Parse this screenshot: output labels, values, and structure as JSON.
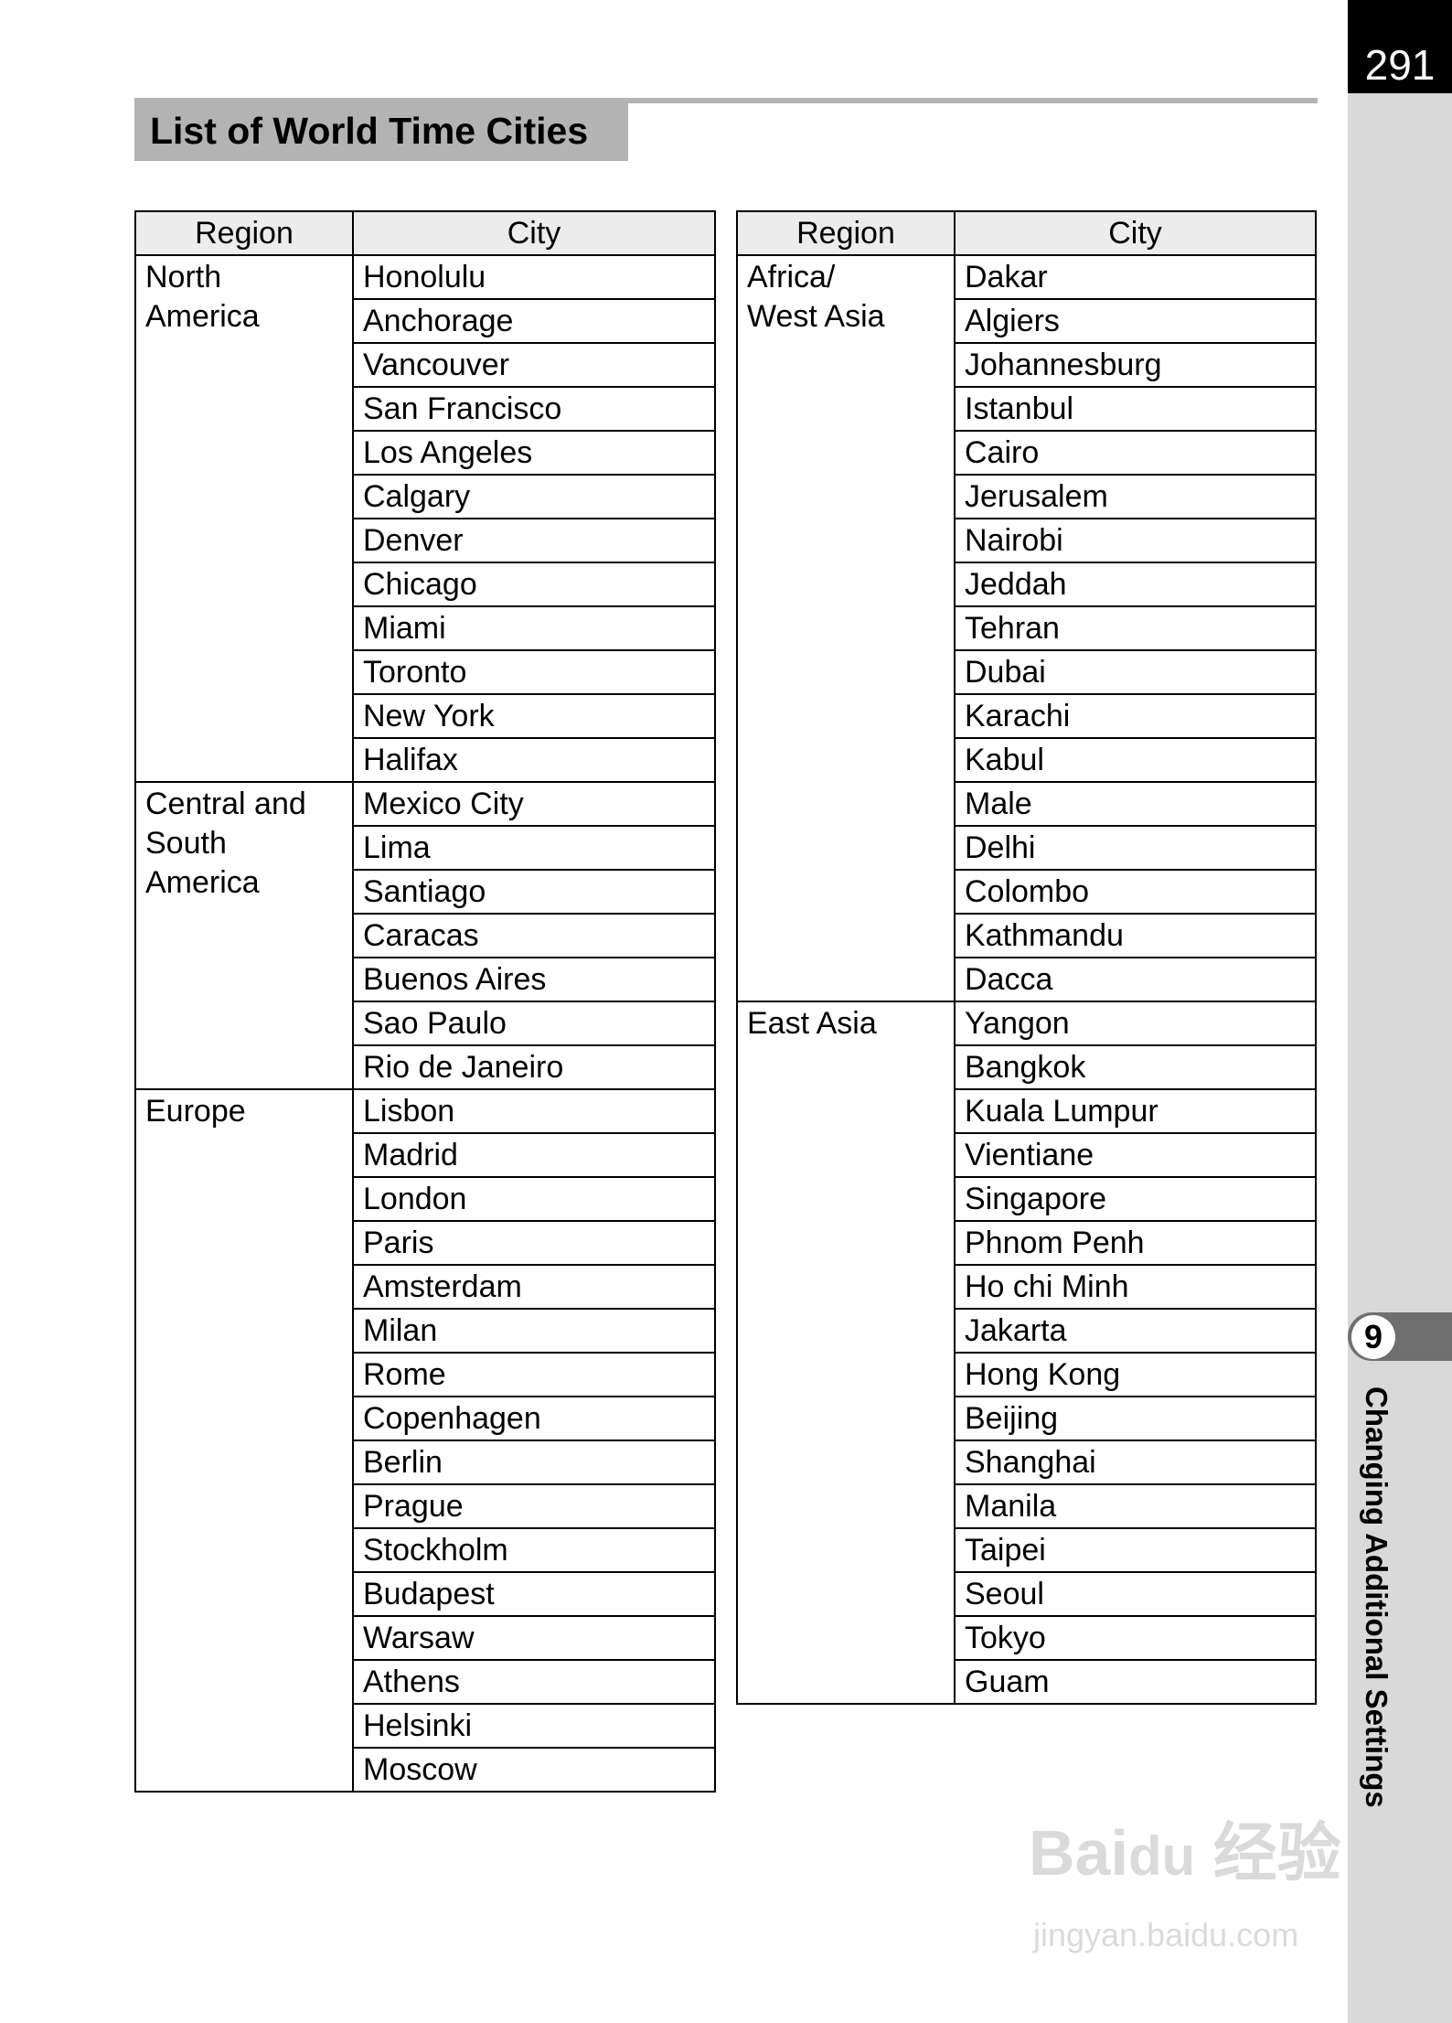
{
  "page_number": "291",
  "title": "List of World Time Cities",
  "chapter": {
    "number": "9",
    "title": "Changing Additional Settings"
  },
  "table_headers": {
    "region": "Region",
    "city": "City"
  },
  "left_table": [
    {
      "region": "North America",
      "region_lines": [
        "North",
        "America"
      ],
      "cities": [
        "Honolulu",
        "Anchorage",
        "Vancouver",
        "San Francisco",
        "Los Angeles",
        "Calgary",
        "Denver",
        "Chicago",
        "Miami",
        "Toronto",
        "New York",
        "Halifax"
      ]
    },
    {
      "region": "Central and South America",
      "region_lines": [
        "Central and",
        "South",
        "America"
      ],
      "cities": [
        "Mexico City",
        "Lima",
        "Santiago",
        "Caracas",
        "Buenos Aires",
        "Sao Paulo",
        "Rio de Janeiro"
      ]
    },
    {
      "region": "Europe",
      "region_lines": [
        "Europe"
      ],
      "cities": [
        "Lisbon",
        "Madrid",
        "London",
        "Paris",
        "Amsterdam",
        "Milan",
        "Rome",
        "Copenhagen",
        "Berlin",
        "Prague",
        "Stockholm",
        "Budapest",
        "Warsaw",
        "Athens",
        "Helsinki",
        "Moscow"
      ]
    }
  ],
  "right_table": [
    {
      "region": "Africa/ West Asia",
      "region_lines": [
        "Africa/",
        "West Asia"
      ],
      "cities": [
        "Dakar",
        "Algiers",
        "Johannesburg",
        "Istanbul",
        "Cairo",
        "Jerusalem",
        "Nairobi",
        "Jeddah",
        "Tehran",
        "Dubai",
        "Karachi",
        "Kabul",
        "Male",
        "Delhi",
        "Colombo",
        "Kathmandu",
        "Dacca"
      ]
    },
    {
      "region": "East Asia",
      "region_lines": [
        "East Asia"
      ],
      "cities": [
        "Yangon",
        "Bangkok",
        "Kuala Lumpur",
        "Vientiane",
        "Singapore",
        "Phnom Penh",
        "Ho chi Minh",
        "Jakarta",
        "Hong Kong",
        "Beijing",
        "Shanghai",
        "Manila",
        "Taipei",
        "Seoul",
        "Tokyo",
        "Guam"
      ]
    }
  ],
  "watermark": {
    "logo": "Baidu 经验",
    "url": "jingyan.baidu.com"
  }
}
